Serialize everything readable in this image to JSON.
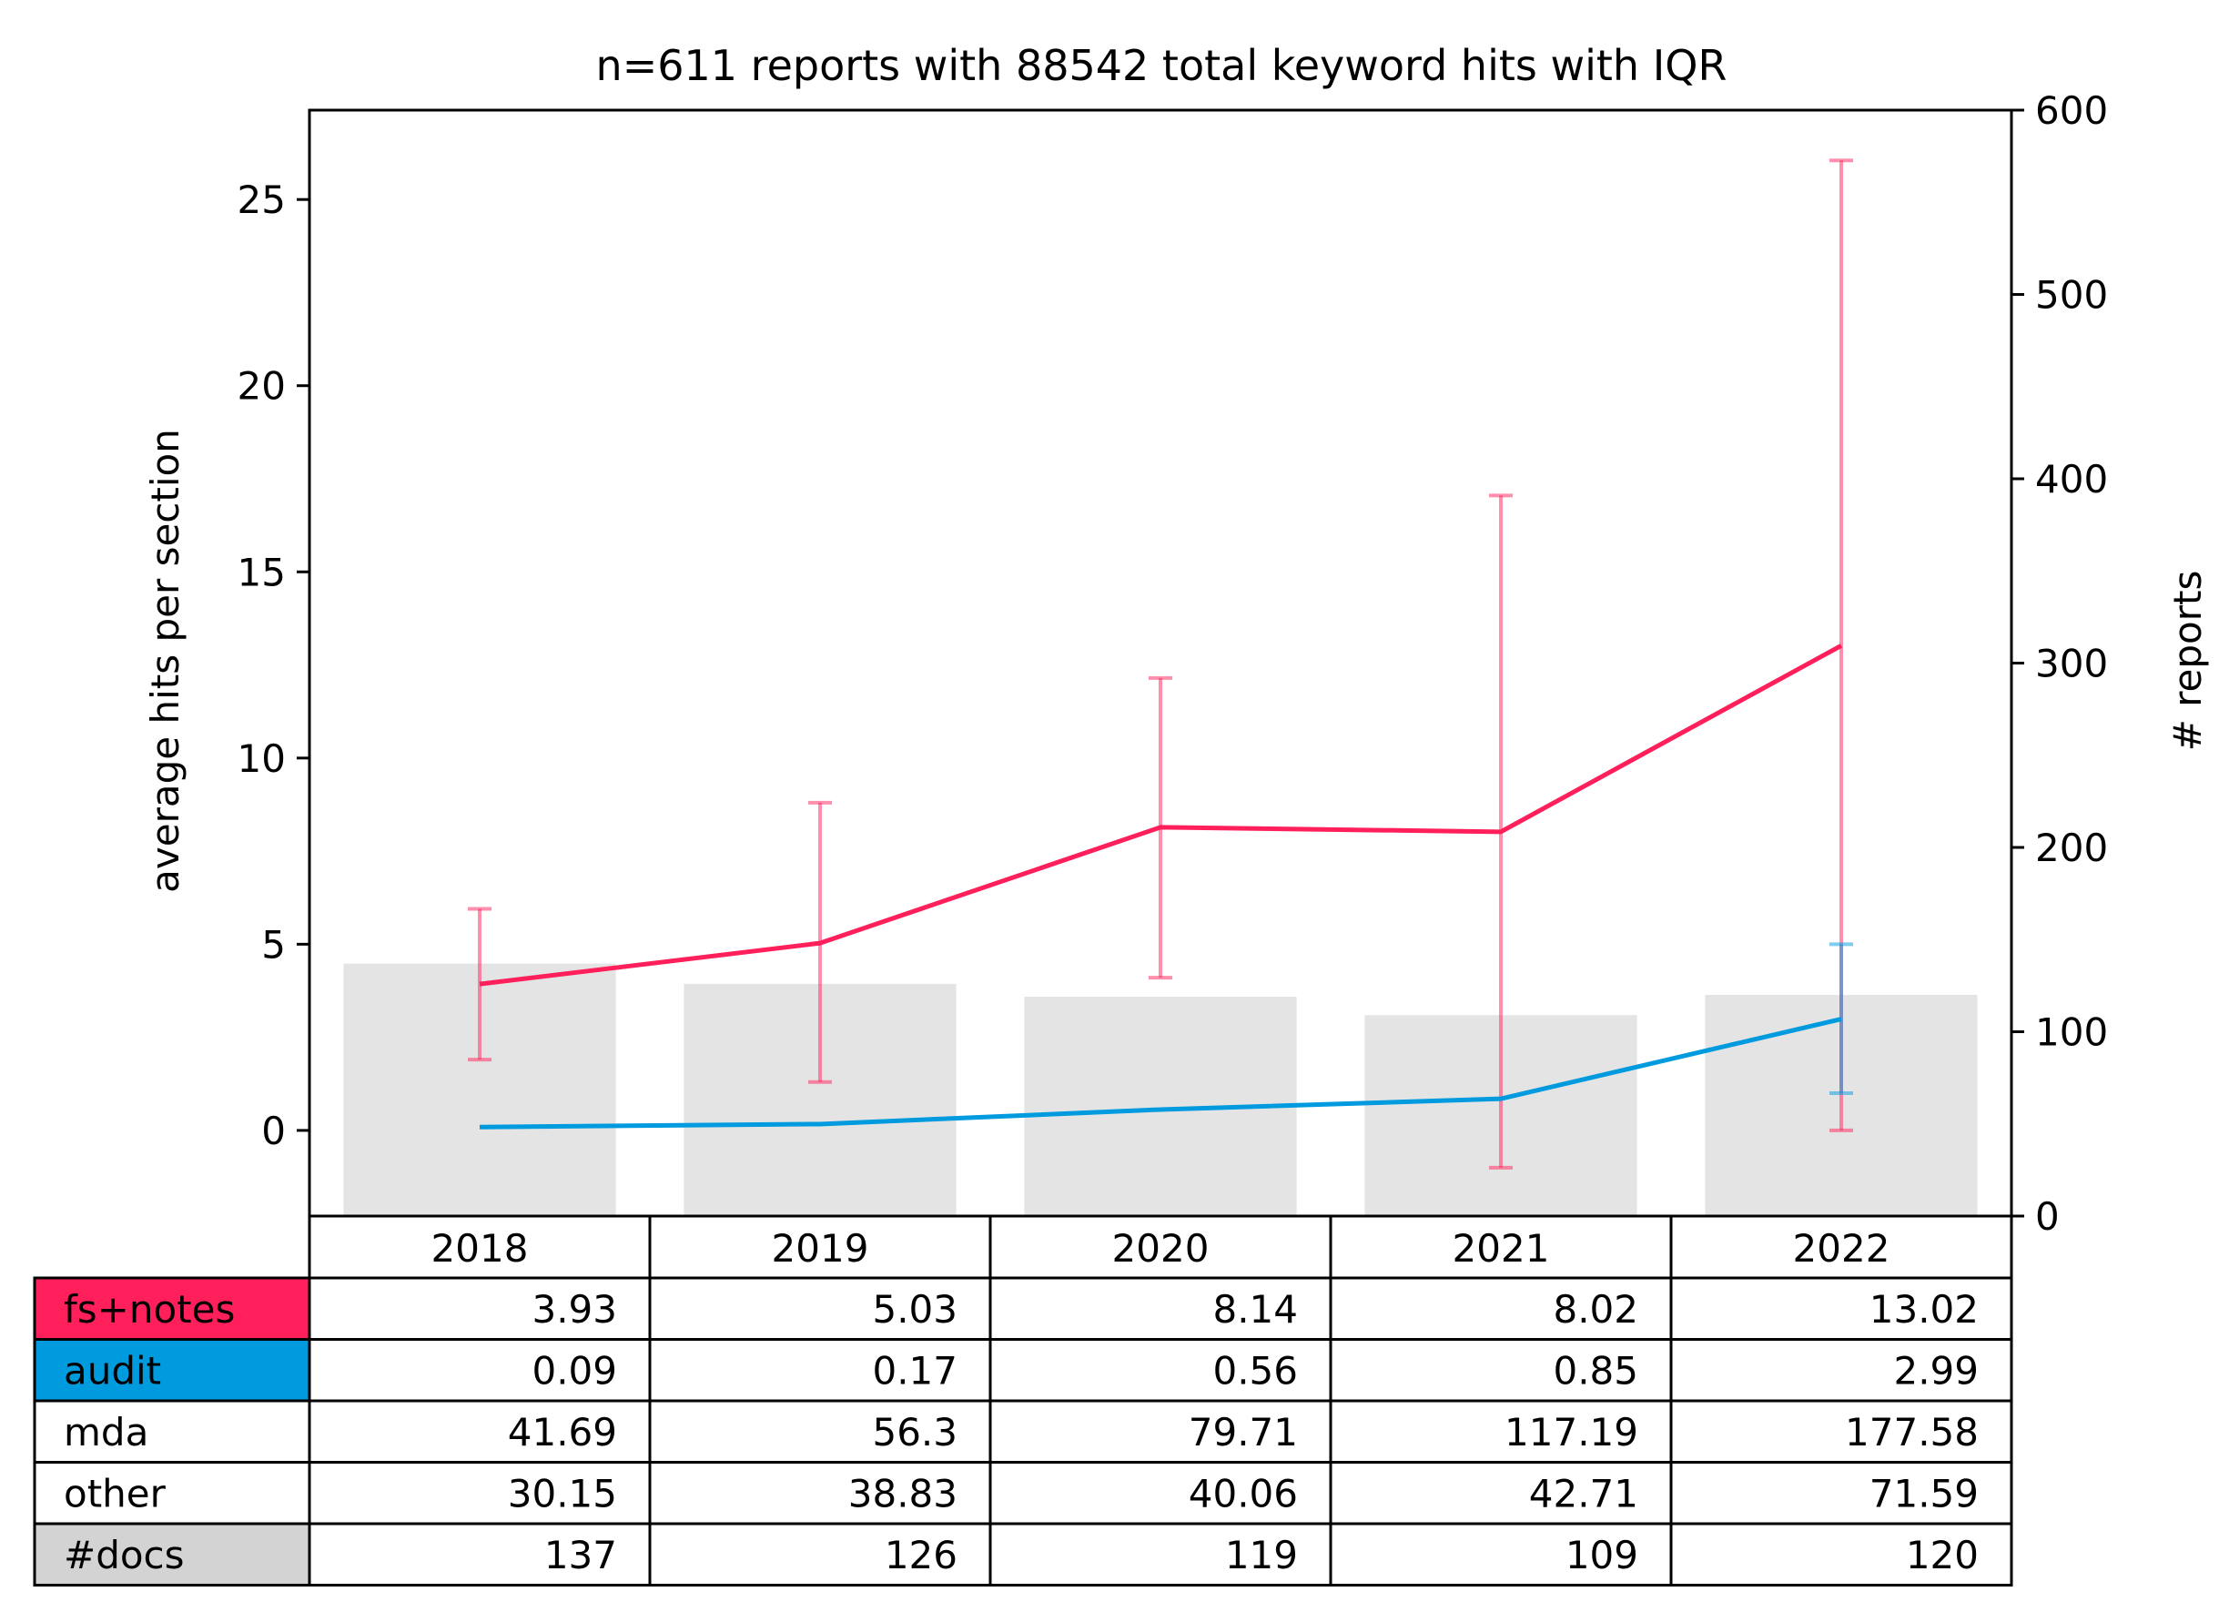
{
  "chart_data": {
    "type": "line",
    "title": "n=611 reports with 88542 total keyword hits with IQR",
    "ylabel": "average hits per section",
    "y2label": "# reports",
    "categories": [
      "2018",
      "2019",
      "2020",
      "2021",
      "2022"
    ],
    "ylim": [
      -2.3,
      27.4
    ],
    "y2lim": [
      0,
      600
    ],
    "yticks": [
      0,
      5,
      10,
      15,
      20,
      25
    ],
    "y2ticks": [
      0,
      100,
      200,
      300,
      400,
      500,
      600
    ],
    "series": [
      {
        "name": "fs+notes",
        "color": "#ff1f5b",
        "values": [
          3.93,
          5.03,
          8.14,
          8.02,
          13.02
        ],
        "iqr_low": [
          1.9,
          1.3,
          4.1,
          -1.0,
          0.0
        ],
        "iqr_high": [
          5.95,
          8.8,
          12.15,
          17.05,
          26.05
        ]
      },
      {
        "name": "audit",
        "color": "#009ade",
        "values": [
          0.09,
          0.17,
          0.56,
          0.85,
          2.99
        ],
        "iqr_low": [
          0.07,
          0.17,
          0.56,
          0.85,
          1.0
        ],
        "iqr_high": [
          0.1,
          0.17,
          0.56,
          0.85,
          5.0
        ]
      }
    ],
    "bars": {
      "name": "#docs",
      "color": "#e4e4e4",
      "values": [
        137,
        126,
        119,
        109,
        120
      ]
    },
    "table": {
      "rows": [
        {
          "label": "fs+notes",
          "color": "#ff1f5b",
          "cells": [
            "3.93",
            "5.03",
            "8.14",
            "8.02",
            "13.02"
          ]
        },
        {
          "label": "audit",
          "color": "#009ade",
          "cells": [
            "0.09",
            "0.17",
            "0.56",
            "0.85",
            "2.99"
          ]
        },
        {
          "label": "mda",
          "color": "#ffffff",
          "cells": [
            "41.69",
            "56.3",
            "79.71",
            "117.19",
            "177.58"
          ]
        },
        {
          "label": "other",
          "color": "#ffffff",
          "cells": [
            "30.15",
            "38.83",
            "40.06",
            "42.71",
            "71.59"
          ]
        },
        {
          "label": "#docs",
          "color": "#d3d3d3",
          "cells": [
            "137",
            "126",
            "119",
            "109",
            "120"
          ]
        }
      ]
    }
  }
}
